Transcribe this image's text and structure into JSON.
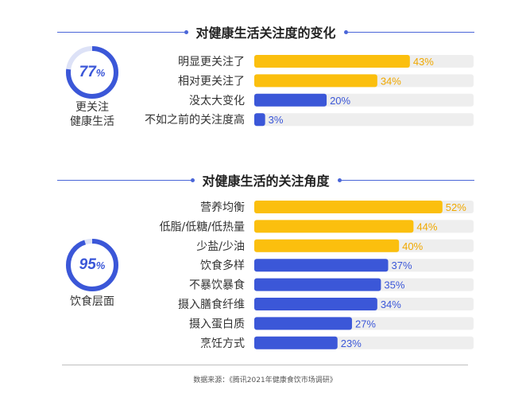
{
  "colors": {
    "gold": "#fbbf0e",
    "blue": "#3b57d8",
    "track": "#eeeeee",
    "ring_track": "#dde2f7",
    "gold_label": "#f0a800",
    "blue_label": "#3b57d8"
  },
  "section1": {
    "title": "对健康生活关注度的变化",
    "ring": {
      "value": 77,
      "unit": "%",
      "caption_line1": "更关注",
      "caption_line2": "健康生活"
    }
  },
  "section2": {
    "title": "对健康生活的关注角度",
    "ring": {
      "value": 95,
      "unit": "%",
      "caption_line1": "饮食层面"
    }
  },
  "source": "数据来源：《腾讯2021年健康食饮市场调研》",
  "chart_data": [
    {
      "type": "bar",
      "orientation": "horizontal",
      "title": "对健康生活关注度的变化",
      "categories": [
        "明显更关注了",
        "相对更关注了",
        "没太大变化",
        "不如之前的关注度高"
      ],
      "values": [
        43,
        34,
        20,
        3
      ],
      "value_labels": [
        "43%",
        "34%",
        "20%",
        "3%"
      ],
      "bar_colors": [
        "gold",
        "gold",
        "blue",
        "blue"
      ],
      "xlim": [
        0,
        100
      ]
    },
    {
      "type": "bar",
      "orientation": "horizontal",
      "title": "对健康生活的关注角度",
      "categories": [
        "营养均衡",
        "低脂/低糖/低热量",
        "少盐/少油",
        "饮食多样",
        "不暴饮暴食",
        "摄入膳食纤维",
        "摄入蛋白质",
        "烹饪方式"
      ],
      "values": [
        52,
        44,
        40,
        37,
        35,
        34,
        27,
        23
      ],
      "value_labels": [
        "52%",
        "44%",
        "40%",
        "37%",
        "35%",
        "34%",
        "27%",
        "23%"
      ],
      "bar_colors": [
        "gold",
        "gold",
        "gold",
        "blue",
        "blue",
        "blue",
        "blue",
        "blue"
      ],
      "xlim": [
        0,
        100
      ]
    }
  ]
}
